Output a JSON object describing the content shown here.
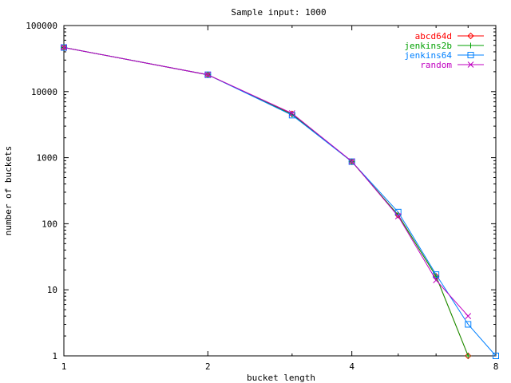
{
  "chart_data": {
    "type": "line",
    "title": "Sample input: 1000",
    "xlabel": "bucket length",
    "ylabel": "number of buckets",
    "x_scale": "log2",
    "y_scale": "log10",
    "xlim": [
      1,
      8
    ],
    "ylim": [
      1,
      100000
    ],
    "x_ticks": [
      1,
      2,
      4,
      8
    ],
    "x_tick_labels": [
      "1",
      "2",
      "4",
      "8"
    ],
    "y_ticks": [
      1,
      10,
      100,
      1000,
      10000,
      100000
    ],
    "y_tick_labels": [
      "1",
      "10",
      "100",
      "1000",
      "10000",
      "100000"
    ],
    "grid": false,
    "legend_position": "top-right",
    "series": [
      {
        "name": "abcd64d",
        "color": "#ff0000",
        "marker": "diamond",
        "points": [
          [
            1,
            46500
          ],
          [
            2,
            18000
          ],
          [
            3,
            4600
          ],
          [
            4,
            870
          ],
          [
            5,
            135
          ],
          [
            6,
            16
          ],
          [
            7,
            1
          ]
        ]
      },
      {
        "name": "jenkins2b",
        "color": "#00a000",
        "marker": "plus",
        "points": [
          [
            1,
            46500
          ],
          [
            2,
            18000
          ],
          [
            3,
            4500
          ],
          [
            4,
            870
          ],
          [
            5,
            135
          ],
          [
            6,
            16
          ],
          [
            7,
            1
          ]
        ]
      },
      {
        "name": "jenkins64",
        "color": "#0080ff",
        "marker": "square",
        "points": [
          [
            1,
            46500
          ],
          [
            2,
            18000
          ],
          [
            3,
            4400
          ],
          [
            4,
            870
          ],
          [
            5,
            150
          ],
          [
            6,
            17
          ],
          [
            7,
            3
          ],
          [
            8,
            1
          ]
        ]
      },
      {
        "name": "random",
        "color": "#c000c0",
        "marker": "x",
        "points": [
          [
            1,
            46500
          ],
          [
            2,
            18000
          ],
          [
            3,
            4700
          ],
          [
            4,
            880
          ],
          [
            5,
            130
          ],
          [
            6,
            14
          ],
          [
            7,
            4
          ]
        ]
      }
    ]
  }
}
